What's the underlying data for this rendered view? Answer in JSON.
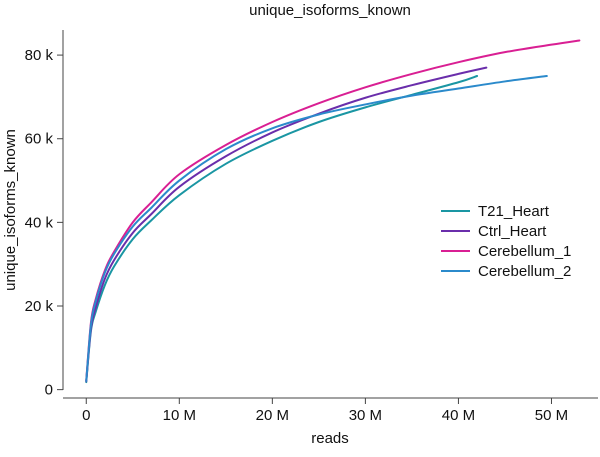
{
  "chart_data": {
    "type": "line",
    "title": "unique_isoforms_known",
    "xlabel": "reads",
    "ylabel": "unique_isoforms_known",
    "xlim": [
      -2.5,
      55
    ],
    "ylim": [
      -2000,
      86000
    ],
    "x_unit": "M reads",
    "x_ticks": [
      0,
      10,
      20,
      30,
      40,
      50
    ],
    "x_tick_labels": [
      "0",
      "10 M",
      "20 M",
      "30 M",
      "40 M",
      "50 M"
    ],
    "y_ticks": [
      0,
      20000,
      40000,
      60000,
      80000
    ],
    "y_tick_labels": [
      "0",
      "20 k",
      "40 k",
      "60 k",
      "80 k"
    ],
    "grid": false,
    "legend_position": "right",
    "series": [
      {
        "name": "T21_Heart",
        "color": "#1a96a3",
        "x": [
          0,
          0.5,
          1,
          2,
          3,
          5,
          7,
          10,
          15,
          20,
          25,
          30,
          35,
          40,
          42
        ],
        "y": [
          1800,
          14000,
          18500,
          25000,
          29500,
          36000,
          40500,
          46500,
          54000,
          59500,
          64000,
          67500,
          70500,
          73500,
          75000
        ]
      },
      {
        "name": "Ctrl_Heart",
        "color": "#6a2eab",
        "x": [
          0,
          0.5,
          1,
          2,
          3,
          5,
          7,
          10,
          15,
          20,
          25,
          30,
          35,
          40,
          43
        ],
        "y": [
          2000,
          14500,
          19500,
          26500,
          31000,
          37500,
          42000,
          48500,
          55800,
          61500,
          66000,
          69800,
          72800,
          75500,
          77000
        ]
      },
      {
        "name": "Cerebellum_1",
        "color": "#d91f93",
        "x": [
          0,
          0.5,
          1,
          2,
          3,
          5,
          7,
          10,
          15,
          20,
          25,
          30,
          35,
          40,
          45,
          50,
          53
        ],
        "y": [
          2200,
          16000,
          21500,
          28500,
          33000,
          40000,
          44800,
          51500,
          58500,
          64000,
          68500,
          72300,
          75500,
          78300,
          80700,
          82500,
          83500
        ]
      },
      {
        "name": "Cerebellum_2",
        "color": "#2b8acb",
        "x": [
          0,
          0.5,
          1,
          2,
          3,
          5,
          7,
          10,
          15,
          20,
          25,
          30,
          35,
          40,
          45,
          49.5
        ],
        "y": [
          2100,
          15500,
          21000,
          28000,
          32500,
          39000,
          43500,
          50000,
          57500,
          62500,
          65800,
          68200,
          70300,
          72000,
          73700,
          75000
        ]
      }
    ]
  }
}
